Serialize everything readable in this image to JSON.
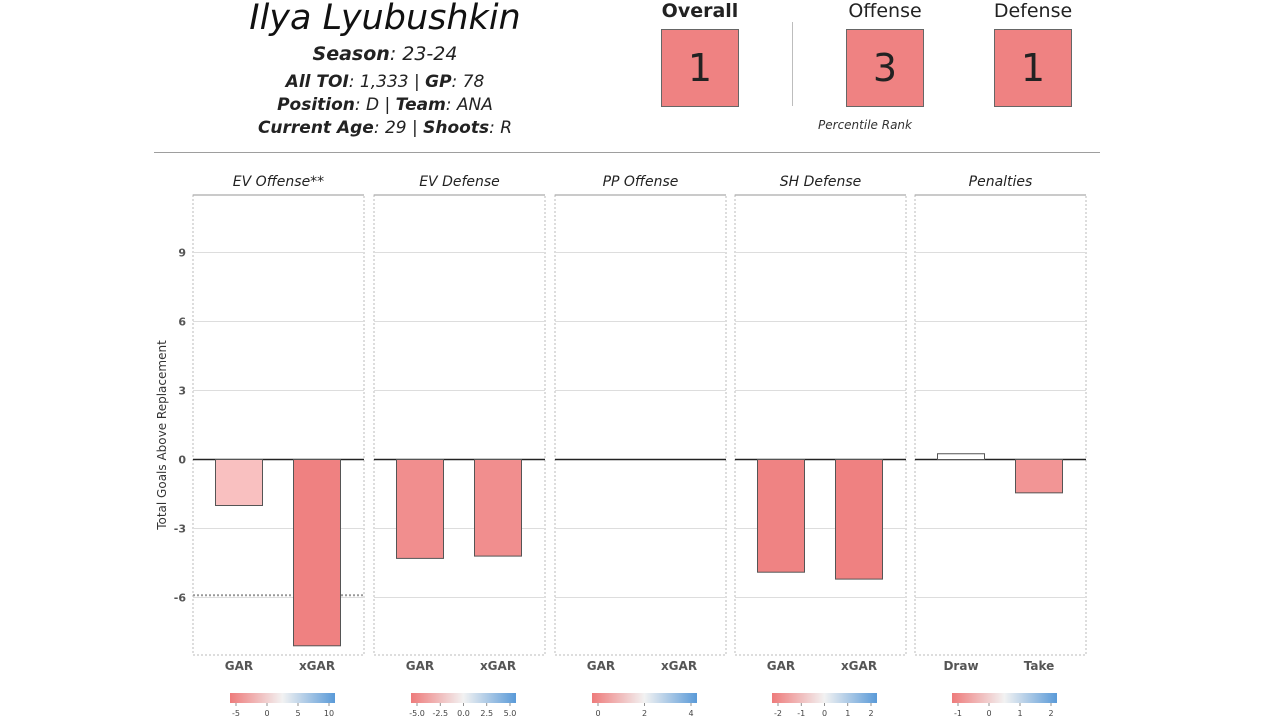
{
  "header": {
    "player_name": "Ilya Lyubushkin",
    "season_label": "Season",
    "season_value": ": 23-24",
    "toi_label": "All TOI",
    "toi_value": ": 1,333 | ",
    "gp_label": "GP",
    "gp_value": ": 78",
    "position_label": "Position",
    "position_value": ": D | ",
    "team_label": "Team",
    "team_value": ": ANA",
    "age_label": "Current Age",
    "age_value": ": 29 | ",
    "shoots_label": "Shoots",
    "shoots_value": ": R"
  },
  "ranks": {
    "overall_label": "Overall",
    "overall_value": "1",
    "offense_label": "Offense",
    "offense_value": "3",
    "defense_label": "Defense",
    "defense_value": "1",
    "percentile_label": "Percentile Rank",
    "box_color": "#ef8282"
  },
  "chart_data": {
    "type": "bar",
    "ylabel": "Total Goals Above Replacement",
    "ylim": [
      -8.5,
      11.5
    ],
    "yticks": [
      -6,
      -3,
      0,
      3,
      6,
      9
    ],
    "grid": true,
    "reference_line": -5.9,
    "panels": [
      {
        "title": "EV Offense**",
        "categories": [
          "GAR",
          "xGAR"
        ],
        "values": [
          -2.0,
          -8.1
        ],
        "colors": [
          "#f9c0c0",
          "#ef8181"
        ],
        "scale_ticks": [
          "-5",
          "0",
          "5",
          "10"
        ]
      },
      {
        "title": "EV Defense",
        "categories": [
          "GAR",
          "xGAR"
        ],
        "values": [
          -4.3,
          -4.2
        ],
        "colors": [
          "#f18e8e",
          "#f18e8e"
        ],
        "scale_ticks": [
          "-5.0",
          "-2.5",
          "0.0",
          "2.5",
          "5.0"
        ]
      },
      {
        "title": "PP Offense",
        "categories": [
          "GAR",
          "xGAR"
        ],
        "values": [
          0,
          0
        ],
        "colors": [
          "#ffffff",
          "#ffffff"
        ],
        "scale_ticks": [
          "0",
          "2",
          "4"
        ]
      },
      {
        "title": "SH Defense",
        "categories": [
          "GAR",
          "xGAR"
        ],
        "values": [
          -4.9,
          -5.2
        ],
        "colors": [
          "#ef8383",
          "#ef8181"
        ],
        "scale_ticks": [
          "-2",
          "-1",
          "0",
          "1",
          "2"
        ]
      },
      {
        "title": "Penalties",
        "categories": [
          "Draw",
          "Take"
        ],
        "values": [
          0.25,
          -1.45
        ],
        "colors": [
          "#ffffff",
          "#f29595"
        ],
        "scale_ticks": [
          "-1",
          "0",
          "1",
          "2"
        ]
      }
    ]
  }
}
